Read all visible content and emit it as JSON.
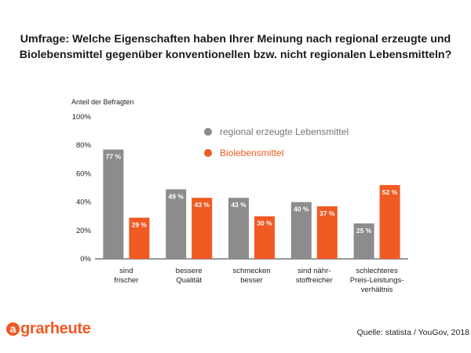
{
  "chart_data": {
    "type": "bar",
    "title": [
      "Umfrage: Welche Eigenschaften haben Ihrer Meinung nach regional erzeugte und",
      "Biolebensmittel gegenüber konventionellen bzw. nicht regionalen Lebensmitteln?"
    ],
    "ylabel": "Anteil der Befragten",
    "ylim": [
      0,
      100
    ],
    "yticks": [
      "0%",
      "20%",
      "40%",
      "60%",
      "80%",
      "100%"
    ],
    "categories": [
      [
        "sind",
        "frischer"
      ],
      [
        "bessere",
        "Qualität"
      ],
      [
        "schmecken",
        "besser"
      ],
      [
        "sind nähr-",
        "stoffreicher"
      ],
      [
        "schlechteres",
        "Preis-Leistungs-",
        "verhältnis"
      ]
    ],
    "series": [
      {
        "name": "regional erzeugte Lebensmittel",
        "color": "#8c8c8c",
        "values": [
          77,
          49,
          43,
          40,
          25
        ],
        "labels": [
          "77 %",
          "49 %",
          "43 %",
          "40 %",
          "25 %"
        ]
      },
      {
        "name": "Biolebensmittel",
        "color": "#f05a23",
        "values": [
          29,
          43,
          30,
          37,
          52
        ],
        "labels": [
          "29 %",
          "43 %",
          "30 %",
          "37 %",
          "52 %"
        ]
      }
    ],
    "legend": "inside-top-right",
    "grid": false
  },
  "brand": {
    "mark": "a",
    "word": "grarheute",
    "color": "#f05a23"
  },
  "source": "Quelle: statista / YouGov, 2018"
}
